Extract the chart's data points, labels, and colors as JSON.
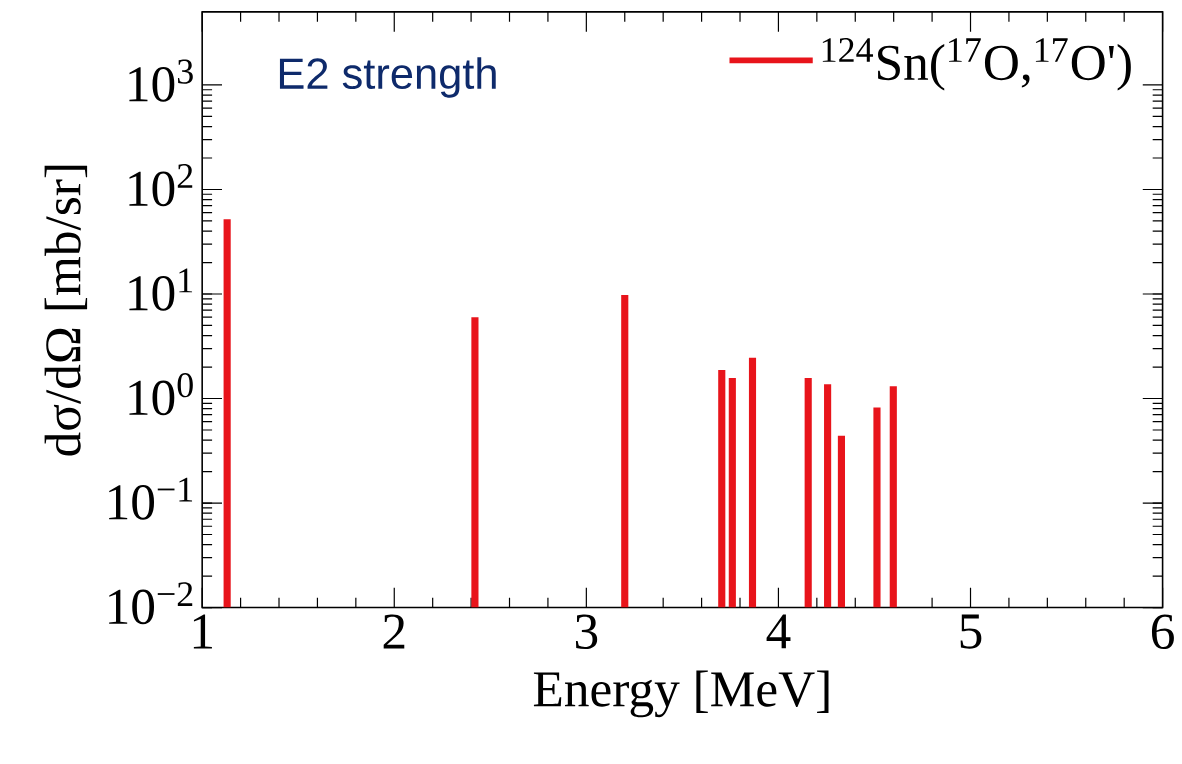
{
  "chart_data": {
    "type": "bar",
    "xlabel": "Energy [MeV]",
    "ylabel": "dσ/dΩ [mb/sr]",
    "annotations": [
      "E2 strength"
    ],
    "x": [
      1.13,
      2.42,
      3.2,
      3.705,
      3.76,
      3.865,
      4.155,
      4.256,
      4.328,
      4.513,
      4.598
    ],
    "series": [
      {
        "name": "$^{124}$Sn($^{17}$O,$^{17}$O')",
        "color": "#e8141b",
        "values": [
          52,
          6.0,
          9.8,
          1.87,
          1.57,
          2.45,
          1.57,
          1.37,
          0.44,
          0.82,
          1.31
        ]
      }
    ],
    "xlim": [
      1,
      6
    ],
    "xticks": [
      1,
      2,
      3,
      4,
      5,
      6
    ],
    "ylim": [
      0.01,
      5000
    ],
    "yticks": [
      {
        "value": 0.01,
        "label": "10$^{−2}$"
      },
      {
        "value": 0.1,
        "label": "10$^{−1}$"
      },
      {
        "value": 1,
        "label": "10$^{0}$"
      },
      {
        "value": 10,
        "label": "10$^{1}$"
      },
      {
        "value": 100,
        "label": "10$^{2}$"
      },
      {
        "value": 1000,
        "label": "10$^{3}$"
      }
    ],
    "log": "y",
    "legend": "top right"
  }
}
